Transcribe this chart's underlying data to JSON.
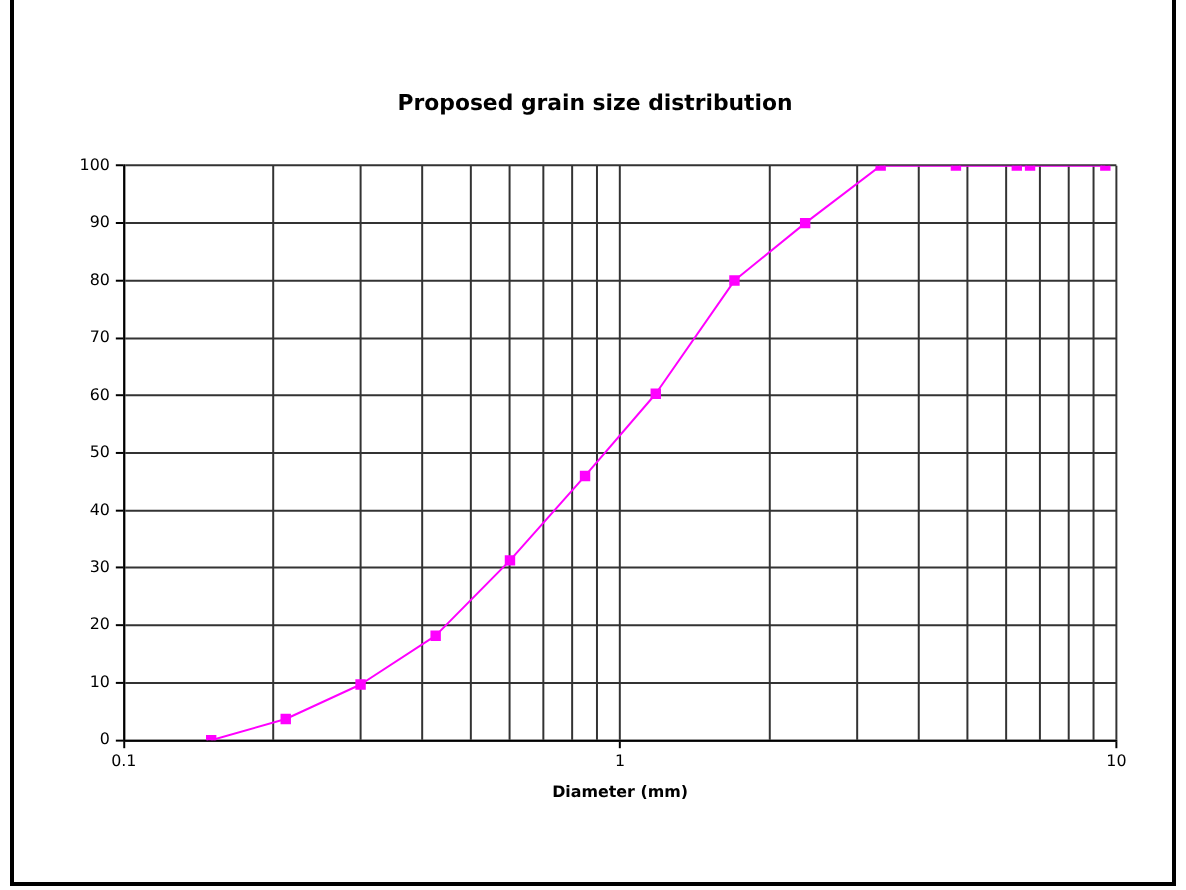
{
  "chart_data": {
    "type": "line",
    "title": "Proposed grain size distribution",
    "xlabel": "Diameter (mm)",
    "x": [
      0.15,
      0.212,
      0.3,
      0.425,
      0.6,
      0.85,
      1.18,
      1.7,
      2.36,
      3.35,
      4.75,
      6.3,
      6.7,
      9.5
    ],
    "series": [
      {
        "color": "#ff00ff",
        "values": [
          0,
          3.7,
          9.7,
          18.2,
          31.3,
          46,
          60.3,
          80,
          90,
          100,
          100,
          100,
          100,
          100
        ]
      }
    ],
    "log": "x",
    "xlim": [
      0.1,
      10
    ],
    "xticks": [
      0.1,
      {
        "value": 0.2,
        "label": null
      },
      {
        "value": 0.3,
        "label": null
      },
      {
        "value": 0.4,
        "label": null
      },
      {
        "value": 0.5,
        "label": null
      },
      {
        "value": 0.6,
        "label": null
      },
      {
        "value": 0.7,
        "label": null
      },
      {
        "value": 0.8,
        "label": null
      },
      {
        "value": 0.9,
        "label": null
      },
      1,
      {
        "value": 2,
        "label": null
      },
      {
        "value": 3,
        "label": null
      },
      {
        "value": 4,
        "label": null
      },
      {
        "value": 5,
        "label": null
      },
      {
        "value": 6,
        "label": null
      },
      {
        "value": 7,
        "label": null
      },
      {
        "value": 8,
        "label": null
      },
      {
        "value": 9,
        "label": null
      },
      10
    ],
    "ylim": [
      0,
      100
    ],
    "yticks": [
      0,
      10,
      20,
      30,
      40,
      50,
      60,
      70,
      80,
      90,
      100
    ],
    "grid": true,
    "marker": "square"
  }
}
